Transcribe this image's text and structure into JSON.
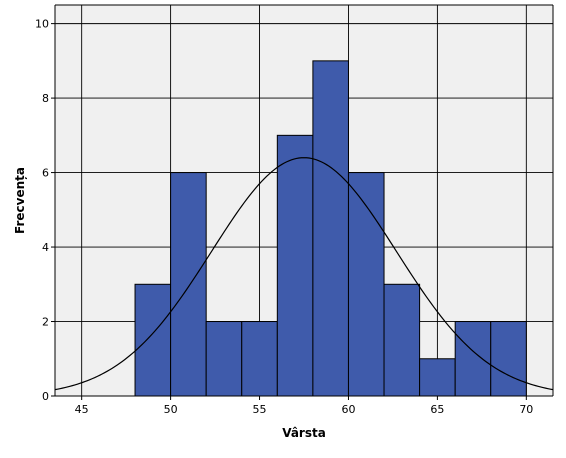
{
  "chart_data": {
    "type": "bar",
    "subtype": "histogram-with-normal-curve",
    "xlabel": "Vârsta",
    "ylabel": "Frecvența",
    "xlim": [
      43.5,
      71.5
    ],
    "ylim": [
      0,
      10.5
    ],
    "x_ticks": [
      45,
      50,
      55,
      60,
      65,
      70
    ],
    "y_ticks": [
      0,
      2,
      4,
      6,
      8,
      10
    ],
    "grid": true,
    "bin_width": 2,
    "bins": [
      {
        "start": 48,
        "end": 50,
        "count": 3
      },
      {
        "start": 50,
        "end": 52,
        "count": 6
      },
      {
        "start": 52,
        "end": 54,
        "count": 2
      },
      {
        "start": 54,
        "end": 56,
        "count": 2
      },
      {
        "start": 56,
        "end": 58,
        "count": 7
      },
      {
        "start": 58,
        "end": 60,
        "count": 9
      },
      {
        "start": 60,
        "end": 62,
        "count": 6
      },
      {
        "start": 62,
        "end": 64,
        "count": 3
      },
      {
        "start": 64,
        "end": 66,
        "count": 1
      },
      {
        "start": 66,
        "end": 68,
        "count": 2
      },
      {
        "start": 68,
        "end": 70,
        "count": 2
      }
    ],
    "normal_curve": {
      "mean": 57.5,
      "peak": 6.4,
      "sd": 5.2
    },
    "colors": {
      "plot_background": "#f0f0f0",
      "bar_fill": "#3f5bab",
      "bar_stroke": "#000000",
      "grid": "#000000",
      "curve": "#000000"
    }
  }
}
